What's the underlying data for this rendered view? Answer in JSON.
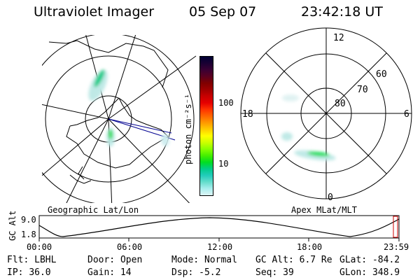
{
  "header": {
    "title": "Ultraviolet Imager",
    "date": "05 Sep 07",
    "time": "23:42:18 UT"
  },
  "colorbar": {
    "unit": "photon cm⁻²s⁻¹",
    "ticks": [
      "100",
      "10"
    ],
    "colors": [
      "#000033",
      "#1a0033",
      "#3a0033",
      "#5a0020",
      "#800000",
      "#a00000",
      "#c80000",
      "#e60000",
      "#ff3300",
      "#ff6600",
      "#ff9900",
      "#ffcc00",
      "#ffff00",
      "#ccff00",
      "#88ff00",
      "#44ee00",
      "#00dd22",
      "#00cc88",
      "#22ccbb",
      "#66ddcc",
      "#aaeeee",
      "#ddf5f5"
    ]
  },
  "left_panel": {
    "label": "Geographic Lat/Lon"
  },
  "right_panel": {
    "label": "Apex MLat/MLT",
    "mlt_labels": [
      "12",
      "18",
      "6",
      "0"
    ],
    "lat_labels": [
      "60",
      "70",
      "80"
    ]
  },
  "altitude_plot": {
    "ylabel": "GC Alt",
    "yticks": [
      "9.0",
      "1.8"
    ],
    "xticks": [
      "00:00",
      "06:00",
      "12:00",
      "18:00",
      "23:59"
    ]
  },
  "info": {
    "flt_label": "Flt:",
    "flt_value": "LBHL",
    "ip_label": "IP:",
    "ip_value": "36.0",
    "door_label": "Door:",
    "door_value": "Open",
    "gain_label": "Gain:",
    "gain_value": "14",
    "mode_label": "Mode:",
    "mode_value": "Normal",
    "dsp_label": "Dsp:",
    "dsp_value": "-5.2",
    "gcalt_label": "GC Alt:",
    "gcalt_value": "6.7 Re",
    "seq_label": "Seq:",
    "seq_value": "39",
    "glat_label": "GLat:",
    "glat_value": "-84.2",
    "glon_label": "GLon:",
    "glon_value": "348.9"
  }
}
